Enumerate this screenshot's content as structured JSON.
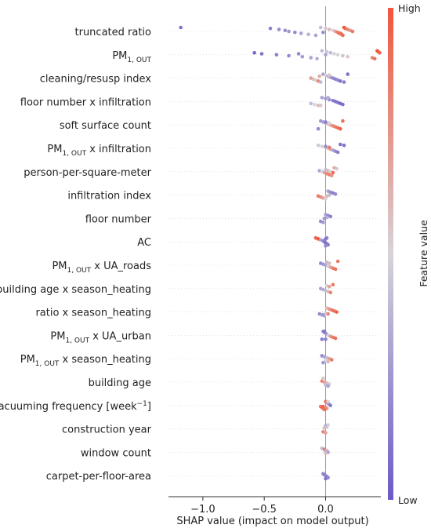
{
  "chart_data": {
    "type": "scatter",
    "subtype": "shap-beeswarm",
    "xlabel": "SHAP value (impact on model output)",
    "xlim": [
      -1.28,
      0.45
    ],
    "xticks": [
      -1.0,
      -0.5,
      0.0
    ],
    "xtick_labels": [
      "−1.0",
      "−0.5",
      "0.0"
    ],
    "grid": false,
    "legend": "colorbar-right",
    "colorbar": {
      "title": "Feature value",
      "high_label": "High",
      "low_label": "Low",
      "high_color": "#f2553a",
      "mid_color": "#d7d3d8",
      "low_color": "#6a5ac8"
    },
    "features": [
      {
        "label": {
          "base": "truncated ratio"
        },
        "points": [
          [
            -1.18,
            0.1
          ],
          [
            -0.45,
            0.15
          ],
          [
            -0.38,
            0.2
          ],
          [
            -0.33,
            0.2
          ],
          [
            -0.3,
            0.25
          ],
          [
            -0.25,
            0.2
          ],
          [
            -0.2,
            0.3
          ],
          [
            -0.14,
            0.35
          ],
          [
            -0.08,
            0.3
          ],
          [
            -0.04,
            0.4
          ],
          [
            0.0,
            0.55
          ],
          [
            0.03,
            0.6
          ],
          [
            0.06,
            0.5
          ],
          [
            0.08,
            0.7
          ],
          [
            0.1,
            0.85
          ],
          [
            0.12,
            0.9
          ],
          [
            0.13,
            0.95
          ],
          [
            0.14,
            0.9
          ],
          [
            0.15,
            1.0
          ],
          [
            0.16,
            0.95
          ],
          [
            0.18,
            0.8
          ],
          [
            0.2,
            0.75
          ],
          [
            0.22,
            0.85
          ],
          [
            -0.02,
            0.2
          ],
          [
            0.11,
            0.88
          ]
        ]
      },
      {
        "label": {
          "base": "PM",
          "sub": "1, OUT"
        },
        "points": [
          [
            -0.58,
            0.05
          ],
          [
            -0.52,
            0.1
          ],
          [
            -0.4,
            0.15
          ],
          [
            -0.3,
            0.2
          ],
          [
            -0.19,
            0.25
          ],
          [
            -0.12,
            0.3
          ],
          [
            -0.07,
            0.35
          ],
          [
            -0.03,
            0.4
          ],
          [
            0.01,
            0.45
          ],
          [
            0.04,
            0.4
          ],
          [
            0.07,
            0.5
          ],
          [
            0.1,
            0.5
          ],
          [
            0.14,
            0.45
          ],
          [
            0.18,
            0.55
          ],
          [
            0.38,
            0.8
          ],
          [
            0.4,
            0.9
          ],
          [
            0.42,
            1.0
          ],
          [
            0.43,
            1.0
          ],
          [
            0.44,
            0.95
          ],
          [
            -0.22,
            0.2
          ],
          [
            0.0,
            0.3
          ]
        ]
      },
      {
        "label": {
          "base": "cleaning/resusp index"
        },
        "points": [
          [
            -0.12,
            0.7
          ],
          [
            -0.1,
            0.6
          ],
          [
            -0.08,
            0.5
          ],
          [
            -0.06,
            0.8
          ],
          [
            -0.04,
            0.4
          ],
          [
            -0.02,
            0.3
          ],
          [
            0.0,
            0.5
          ],
          [
            0.02,
            0.35
          ],
          [
            0.04,
            0.25
          ],
          [
            0.06,
            0.2
          ],
          [
            0.08,
            0.15
          ],
          [
            0.1,
            0.2
          ],
          [
            0.12,
            0.1
          ],
          [
            0.15,
            0.15
          ],
          [
            0.18,
            0.1
          ],
          [
            0.03,
            0.55
          ],
          [
            -0.05,
            0.65
          ]
        ]
      },
      {
        "label": {
          "base": "floor number x infiltration"
        },
        "points": [
          [
            -0.12,
            0.4
          ],
          [
            -0.09,
            0.5
          ],
          [
            -0.06,
            0.6
          ],
          [
            -0.03,
            0.3
          ],
          [
            0.0,
            0.25
          ],
          [
            0.03,
            0.2
          ],
          [
            0.06,
            0.15
          ],
          [
            0.08,
            0.1
          ],
          [
            0.1,
            0.1
          ],
          [
            0.12,
            0.05
          ],
          [
            0.14,
            0.1
          ],
          [
            -0.04,
            0.55
          ],
          [
            0.02,
            0.35
          ]
        ]
      },
      {
        "label": {
          "base": "soft surface count"
        },
        "points": [
          [
            -0.06,
            0.2
          ],
          [
            -0.04,
            0.25
          ],
          [
            -0.02,
            0.3
          ],
          [
            0.0,
            0.35
          ],
          [
            0.02,
            0.6
          ],
          [
            0.04,
            0.7
          ],
          [
            0.06,
            0.8
          ],
          [
            0.08,
            0.85
          ],
          [
            0.1,
            0.9
          ],
          [
            0.12,
            0.95
          ],
          [
            0.14,
            0.9
          ],
          [
            0.0,
            0.15
          ],
          [
            0.03,
            0.5
          ]
        ]
      },
      {
        "label": {
          "base": "PM",
          "sub": "1, OUT",
          "suffix": " x infiltration"
        },
        "points": [
          [
            -0.06,
            0.45
          ],
          [
            -0.03,
            0.5
          ],
          [
            0.0,
            0.6
          ],
          [
            0.02,
            0.55
          ],
          [
            0.04,
            0.7
          ],
          [
            0.06,
            0.3
          ],
          [
            0.08,
            0.2
          ],
          [
            0.1,
            0.15
          ],
          [
            0.12,
            0.1
          ],
          [
            0.15,
            0.1
          ],
          [
            0.0,
            0.2
          ],
          [
            0.03,
            0.85
          ]
        ]
      },
      {
        "label": {
          "base": "person-per-square-meter"
        },
        "points": [
          [
            -0.05,
            0.3
          ],
          [
            -0.03,
            0.5
          ],
          [
            -0.01,
            0.7
          ],
          [
            0.01,
            0.8
          ],
          [
            0.03,
            0.85
          ],
          [
            0.05,
            0.75
          ],
          [
            0.07,
            0.65
          ],
          [
            0.09,
            0.55
          ],
          [
            0.0,
            0.4
          ],
          [
            0.02,
            0.6
          ],
          [
            0.04,
            0.5
          ],
          [
            0.06,
            0.9
          ]
        ]
      },
      {
        "label": {
          "base": "infiltration index"
        },
        "points": [
          [
            -0.06,
            0.85
          ],
          [
            -0.04,
            0.8
          ],
          [
            -0.02,
            0.7
          ],
          [
            0.0,
            0.5
          ],
          [
            0.02,
            0.3
          ],
          [
            0.04,
            0.2
          ],
          [
            0.06,
            0.15
          ],
          [
            0.08,
            0.2
          ],
          [
            0.03,
            0.4
          ],
          [
            0.01,
            0.6
          ]
        ]
      },
      {
        "label": {
          "base": "floor number"
        },
        "points": [
          [
            -0.04,
            0.2
          ],
          [
            -0.02,
            0.25
          ],
          [
            0.0,
            0.3
          ],
          [
            0.02,
            0.2
          ],
          [
            0.04,
            0.15
          ],
          [
            0.01,
            0.35
          ],
          [
            -0.01,
            0.25
          ]
        ]
      },
      {
        "label": {
          "base": "AC"
        },
        "points": [
          [
            -0.08,
            0.95
          ],
          [
            -0.06,
            1.0
          ],
          [
            -0.04,
            0.3
          ],
          [
            -0.02,
            0.2
          ],
          [
            -0.01,
            0.15
          ],
          [
            0.0,
            0.1
          ],
          [
            0.01,
            0.1
          ],
          [
            0.02,
            0.15
          ],
          [
            0.0,
            0.2
          ],
          [
            0.01,
            0.2
          ],
          [
            0.0,
            0.12
          ]
        ]
      },
      {
        "label": {
          "base": "PM",
          "sub": "1, OUT",
          "suffix": " x UA_roads"
        },
        "points": [
          [
            -0.04,
            0.2
          ],
          [
            -0.02,
            0.25
          ],
          [
            0.0,
            0.3
          ],
          [
            0.02,
            0.5
          ],
          [
            0.04,
            0.7
          ],
          [
            0.06,
            0.85
          ],
          [
            0.08,
            0.9
          ],
          [
            0.1,
            0.85
          ],
          [
            0.01,
            0.4
          ],
          [
            0.03,
            0.6
          ]
        ]
      },
      {
        "label": {
          "base": "building age x season_heating"
        },
        "points": [
          [
            -0.04,
            0.3
          ],
          [
            -0.02,
            0.35
          ],
          [
            0.0,
            0.4
          ],
          [
            0.02,
            0.6
          ],
          [
            0.04,
            0.8
          ],
          [
            0.06,
            0.85
          ],
          [
            0.01,
            0.5
          ],
          [
            0.03,
            0.7
          ]
        ]
      },
      {
        "label": {
          "base": "ratio x season_heating"
        },
        "points": [
          [
            -0.05,
            0.2
          ],
          [
            -0.03,
            0.3
          ],
          [
            -0.01,
            0.4
          ],
          [
            0.01,
            0.6
          ],
          [
            0.03,
            0.75
          ],
          [
            0.05,
            0.85
          ],
          [
            0.07,
            0.9
          ],
          [
            0.09,
            0.95
          ],
          [
            0.0,
            0.5
          ],
          [
            0.02,
            0.8
          ],
          [
            -0.02,
            0.25
          ]
        ]
      },
      {
        "label": {
          "base": "PM",
          "sub": "1, OUT",
          "suffix": " x UA_urban"
        },
        "points": [
          [
            -0.03,
            0.15
          ],
          [
            -0.02,
            0.2
          ],
          [
            -0.01,
            0.25
          ],
          [
            0.0,
            0.3
          ],
          [
            0.01,
            0.2
          ],
          [
            0.02,
            0.5
          ],
          [
            0.04,
            0.75
          ],
          [
            0.06,
            0.85
          ],
          [
            0.08,
            0.9
          ],
          [
            0.0,
            0.15
          ],
          [
            -0.01,
            0.1
          ]
        ]
      },
      {
        "label": {
          "base": "PM",
          "sub": "1, OUT",
          "suffix": " x season_heating"
        },
        "points": [
          [
            -0.03,
            0.2
          ],
          [
            -0.01,
            0.3
          ],
          [
            0.01,
            0.4
          ],
          [
            0.03,
            0.7
          ],
          [
            0.05,
            0.85
          ],
          [
            0.0,
            0.5
          ],
          [
            0.02,
            0.6
          ],
          [
            -0.02,
            0.25
          ]
        ]
      },
      {
        "label": {
          "base": "building age"
        },
        "points": [
          [
            -0.03,
            0.8
          ],
          [
            -0.01,
            0.7
          ],
          [
            0.01,
            0.6
          ],
          [
            0.03,
            0.5
          ],
          [
            0.0,
            0.4
          ],
          [
            0.02,
            0.3
          ],
          [
            -0.02,
            0.55
          ]
        ]
      },
      {
        "label": {
          "base": "vacuuming frequency [week",
          "sup": "−1",
          "suffix": "]"
        },
        "points": [
          [
            -0.04,
            0.85
          ],
          [
            -0.03,
            0.95
          ],
          [
            -0.02,
            0.9
          ],
          [
            -0.01,
            1.0
          ],
          [
            0.0,
            0.9
          ],
          [
            0.01,
            0.85
          ],
          [
            0.02,
            0.3
          ],
          [
            0.03,
            0.2
          ],
          [
            0.04,
            0.15
          ],
          [
            -0.02,
            0.95
          ],
          [
            0.0,
            0.8
          ],
          [
            0.01,
            0.75
          ],
          [
            -0.01,
            0.9
          ],
          [
            0.02,
            0.5
          ]
        ]
      },
      {
        "label": {
          "base": "construction year"
        },
        "points": [
          [
            -0.02,
            0.8
          ],
          [
            0.0,
            0.7
          ],
          [
            0.02,
            0.5
          ],
          [
            0.0,
            0.3
          ],
          [
            0.01,
            0.45
          ],
          [
            -0.01,
            0.6
          ]
        ]
      },
      {
        "label": {
          "base": "window count"
        },
        "points": [
          [
            -0.03,
            0.4
          ],
          [
            -0.01,
            0.85
          ],
          [
            0.01,
            0.55
          ],
          [
            0.0,
            0.35
          ],
          [
            0.02,
            0.3
          ],
          [
            0.0,
            0.6
          ]
        ]
      },
      {
        "label": {
          "base": "carpet-per-floor-area"
        },
        "points": [
          [
            -0.02,
            0.2
          ],
          [
            -0.01,
            0.15
          ],
          [
            0.0,
            0.2
          ],
          [
            0.01,
            0.15
          ],
          [
            0.02,
            0.2
          ],
          [
            0.0,
            0.1
          ]
        ]
      }
    ]
  }
}
